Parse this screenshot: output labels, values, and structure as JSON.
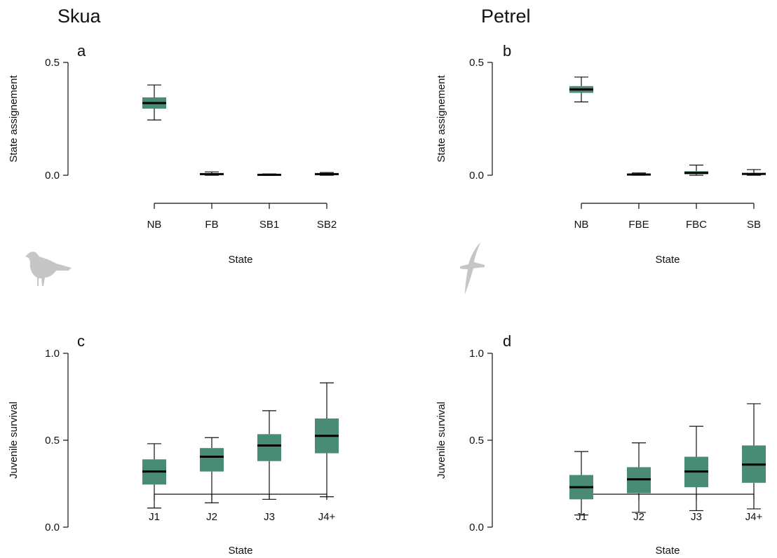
{
  "columns": [
    {
      "title": "Skua",
      "icon": "skua-silhouette-icon"
    },
    {
      "title": "Petrel",
      "icon": "petrel-silhouette-icon"
    }
  ],
  "colors": {
    "box_fill": "#4a8b75",
    "median": "#000000",
    "axis": "#111111",
    "silhouette": "#c6c6c6"
  },
  "chart_data": [
    {
      "panel": "a",
      "type": "boxplot",
      "xlabel": "State",
      "ylabel": "State assignement",
      "ylim": [
        0,
        0.5
      ],
      "yticks": [
        0.0,
        0.5
      ],
      "ytick_labels": [
        "0.0",
        "0.5"
      ],
      "categories": [
        "NB",
        "FB",
        "SB1",
        "SB2"
      ],
      "boxes": [
        {
          "min": 0.245,
          "q1": 0.295,
          "median": 0.32,
          "q3": 0.345,
          "max": 0.4
        },
        {
          "min": 0.0,
          "q1": 0.003,
          "median": 0.005,
          "q3": 0.008,
          "max": 0.015
        },
        {
          "min": 0.0,
          "q1": 0.001,
          "median": 0.002,
          "q3": 0.004,
          "max": 0.006
        },
        {
          "min": 0.0,
          "q1": 0.003,
          "median": 0.005,
          "q3": 0.008,
          "max": 0.012
        }
      ]
    },
    {
      "panel": "b",
      "type": "boxplot",
      "xlabel": "State",
      "ylabel": "State assignement",
      "ylim": [
        0,
        0.5
      ],
      "yticks": [
        0.0,
        0.5
      ],
      "ytick_labels": [
        "0.0",
        "0.5"
      ],
      "categories": [
        "NB",
        "FBE",
        "FBC",
        "SB"
      ],
      "boxes": [
        {
          "min": 0.325,
          "q1": 0.365,
          "median": 0.38,
          "q3": 0.395,
          "max": 0.435
        },
        {
          "min": 0.0,
          "q1": 0.002,
          "median": 0.003,
          "q3": 0.006,
          "max": 0.01
        },
        {
          "min": 0.0,
          "q1": 0.005,
          "median": 0.01,
          "q3": 0.018,
          "max": 0.045
        },
        {
          "min": 0.0,
          "q1": 0.003,
          "median": 0.006,
          "q3": 0.01,
          "max": 0.025
        }
      ]
    },
    {
      "panel": "c",
      "type": "boxplot",
      "xlabel": "State",
      "ylabel": "Juvenile survival",
      "ylim": [
        0,
        1
      ],
      "yticks": [
        0.0,
        0.5,
        1.0
      ],
      "ytick_labels": [
        "0.0",
        "0.5",
        "1.0"
      ],
      "categories": [
        "J1",
        "J2",
        "J3",
        "J4+"
      ],
      "boxes": [
        {
          "min": 0.11,
          "q1": 0.245,
          "median": 0.32,
          "q3": 0.39,
          "max": 0.48
        },
        {
          "min": 0.14,
          "q1": 0.32,
          "median": 0.405,
          "q3": 0.455,
          "max": 0.515
        },
        {
          "min": 0.16,
          "q1": 0.38,
          "median": 0.47,
          "q3": 0.535,
          "max": 0.67
        },
        {
          "min": 0.175,
          "q1": 0.425,
          "median": 0.525,
          "q3": 0.625,
          "max": 0.83
        }
      ]
    },
    {
      "panel": "d",
      "type": "boxplot",
      "xlabel": "State",
      "ylabel": "Juvenile survival",
      "ylim": [
        0,
        1
      ],
      "yticks": [
        0.0,
        0.5,
        1.0
      ],
      "ytick_labels": [
        "0.0",
        "0.5",
        "1.0"
      ],
      "categories": [
        "J1",
        "J2",
        "J3",
        "J4+"
      ],
      "boxes": [
        {
          "min": 0.07,
          "q1": 0.16,
          "median": 0.23,
          "q3": 0.3,
          "max": 0.435
        },
        {
          "min": 0.085,
          "q1": 0.195,
          "median": 0.275,
          "q3": 0.345,
          "max": 0.485
        },
        {
          "min": 0.095,
          "q1": 0.23,
          "median": 0.32,
          "q3": 0.405,
          "max": 0.58
        },
        {
          "min": 0.105,
          "q1": 0.255,
          "median": 0.36,
          "q3": 0.47,
          "max": 0.71
        }
      ]
    }
  ]
}
